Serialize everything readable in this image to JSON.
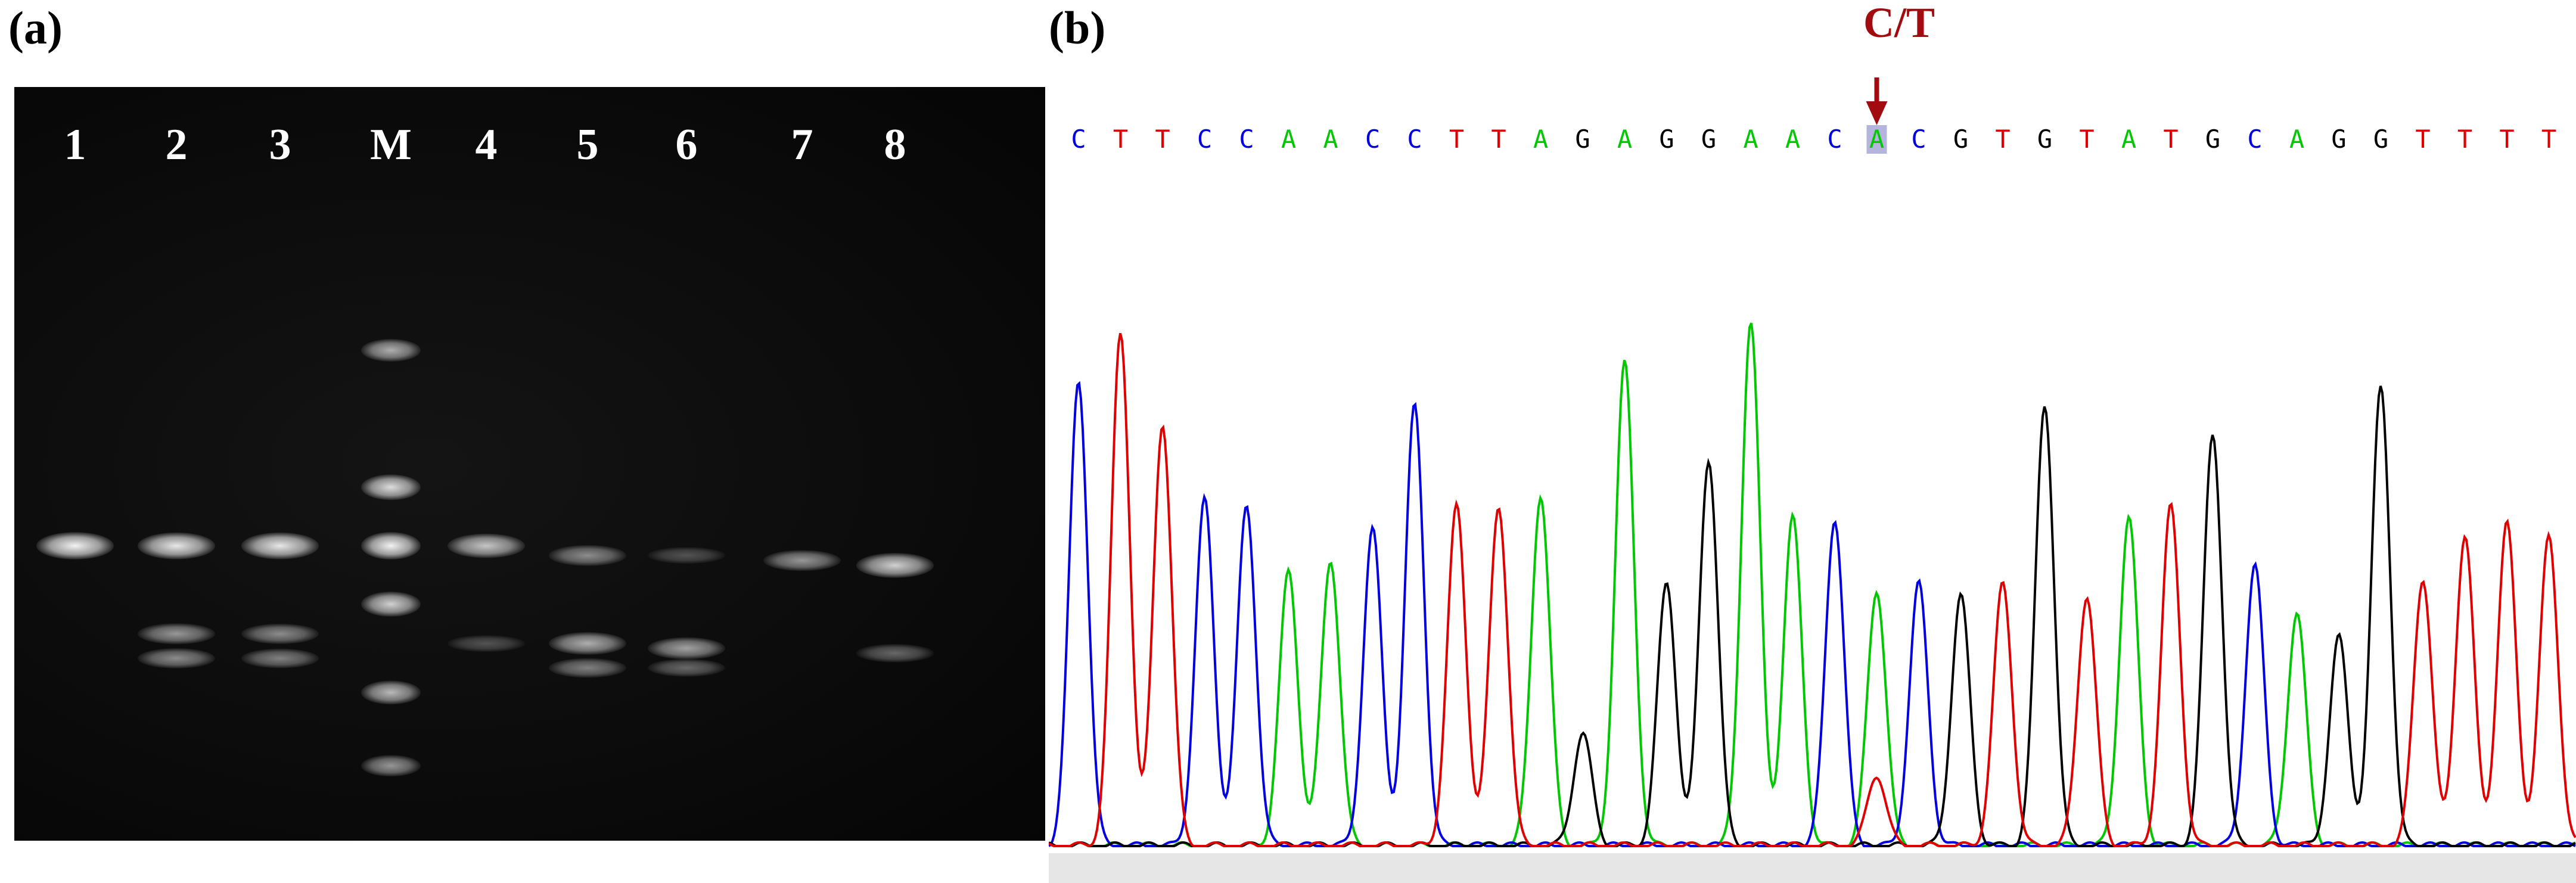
{
  "panels": {
    "a": {
      "label": "(a)",
      "lanes": [
        {
          "label": "1",
          "bands": [
            {
              "y": 0.5,
              "intensity": 1.0
            }
          ]
        },
        {
          "label": "2",
          "bands": [
            {
              "y": 0.5,
              "intensity": 0.95
            },
            {
              "y": 0.32,
              "intensity": 0.6
            },
            {
              "y": 0.27,
              "intensity": 0.55
            }
          ]
        },
        {
          "label": "3",
          "bands": [
            {
              "y": 0.5,
              "intensity": 0.95
            },
            {
              "y": 0.32,
              "intensity": 0.55
            },
            {
              "y": 0.27,
              "intensity": 0.5
            }
          ]
        },
        {
          "label": "M",
          "bands": [
            {
              "y": 0.9,
              "intensity": 0.7
            },
            {
              "y": 0.62,
              "intensity": 0.9
            },
            {
              "y": 0.5,
              "intensity": 1.0
            },
            {
              "y": 0.38,
              "intensity": 0.85
            },
            {
              "y": 0.2,
              "intensity": 0.75
            },
            {
              "y": 0.05,
              "intensity": 0.6
            }
          ]
        },
        {
          "label": "4",
          "bands": [
            {
              "y": 0.5,
              "intensity": 0.8
            },
            {
              "y": 0.3,
              "intensity": 0.3
            }
          ]
        },
        {
          "label": "5",
          "bands": [
            {
              "y": 0.48,
              "intensity": 0.55
            },
            {
              "y": 0.3,
              "intensity": 0.7
            },
            {
              "y": 0.25,
              "intensity": 0.5
            }
          ]
        },
        {
          "label": "6",
          "bands": [
            {
              "y": 0.48,
              "intensity": 0.3
            },
            {
              "y": 0.29,
              "intensity": 0.65
            },
            {
              "y": 0.25,
              "intensity": 0.4
            }
          ]
        },
        {
          "label": "7",
          "bands": [
            {
              "y": 0.47,
              "intensity": 0.6
            }
          ]
        },
        {
          "label": "8",
          "bands": [
            {
              "y": 0.46,
              "intensity": 0.85
            },
            {
              "y": 0.28,
              "intensity": 0.4
            }
          ]
        }
      ]
    },
    "b": {
      "label": "(b)",
      "callout": "C/T",
      "snp_index": 19,
      "sequence": [
        "C",
        "T",
        "T",
        "C",
        "C",
        "A",
        "A",
        "C",
        "C",
        "T",
        "T",
        "A",
        "G",
        "A",
        "G",
        "G",
        "A",
        "A",
        "C",
        "A",
        "C",
        "G",
        "T",
        "G",
        "T",
        "A",
        "T",
        "G",
        "C",
        "A",
        "G",
        "G",
        "T",
        "T",
        "T",
        "T"
      ],
      "peak_heights": [
        0.78,
        0.86,
        0.71,
        0.58,
        0.57,
        0.46,
        0.48,
        0.53,
        0.74,
        0.57,
        0.57,
        0.59,
        0.19,
        0.81,
        0.44,
        0.65,
        0.88,
        0.55,
        0.55,
        0.43,
        0.44,
        0.42,
        0.44,
        0.74,
        0.42,
        0.55,
        0.57,
        0.69,
        0.47,
        0.39,
        0.35,
        0.77,
        0.45,
        0.52,
        0.54,
        0.52
      ],
      "base_colors": {
        "A": "#00c800",
        "C": "#0000e0",
        "G": "#000000",
        "T": "#e00000"
      }
    }
  }
}
